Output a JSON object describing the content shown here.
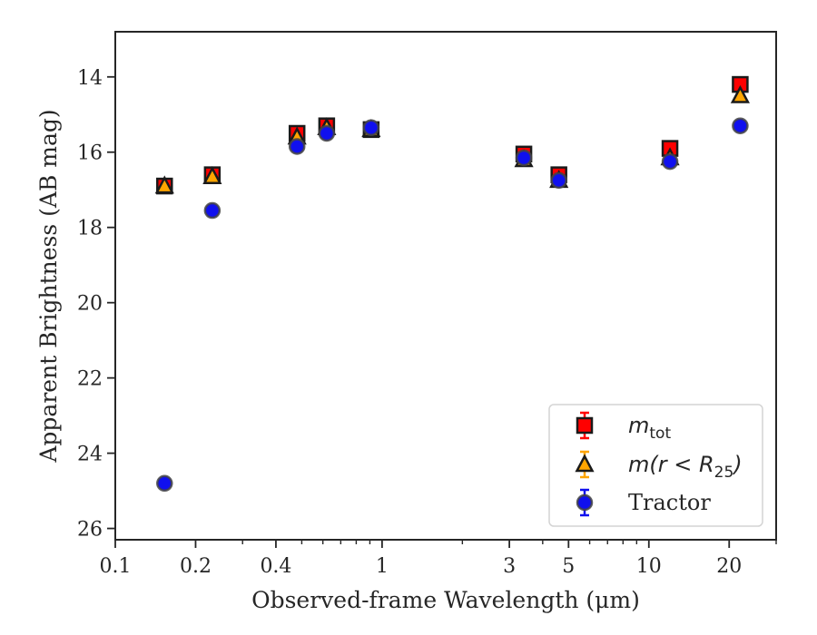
{
  "chart_data": {
    "type": "scatter",
    "xlabel": "Observed-frame Wavelength (μm)",
    "ylabel": "Apparent Brightness (AB mag)",
    "x_scale": "log",
    "xlim": [
      0.1,
      30
    ],
    "ylim": [
      26.3,
      12.8
    ],
    "y_inverted": true,
    "x_ticks": [
      0.1,
      0.2,
      0.4,
      1,
      3,
      5,
      10,
      20
    ],
    "x_tick_labels": [
      "0.1",
      "0.2",
      "0.4",
      "1",
      "3",
      "5",
      "10",
      "20"
    ],
    "y_ticks": [
      14,
      16,
      18,
      20,
      22,
      24,
      26
    ],
    "y_tick_labels": [
      "14",
      "16",
      "18",
      "20",
      "22",
      "24",
      "26"
    ],
    "grid": false,
    "legend": {
      "position": "lower-right",
      "entries": [
        {
          "key": "mtot",
          "base": "m",
          "sub": "tot",
          "text": "",
          "marker": "square",
          "color": "#ff0000"
        },
        {
          "key": "mr25",
          "base": "m(r < R",
          "sub": "25",
          "text": ")",
          "marker": "triangle",
          "color": "#ffa500"
        },
        {
          "key": "tractor",
          "base": "",
          "sub": "",
          "text": "Tractor",
          "marker": "circle",
          "color": "#1010ee"
        }
      ]
    },
    "series": [
      {
        "key": "mtot",
        "marker": "square",
        "color": "#ff0000",
        "points": [
          {
            "x": 0.153,
            "y": 16.9
          },
          {
            "x": 0.231,
            "y": 16.6
          },
          {
            "x": 0.48,
            "y": 15.5
          },
          {
            "x": 0.62,
            "y": 15.3
          },
          {
            "x": 0.91,
            "y": 15.4
          },
          {
            "x": 3.4,
            "y": 16.05
          },
          {
            "x": 4.6,
            "y": 16.6
          },
          {
            "x": 12,
            "y": 15.9
          },
          {
            "x": 22,
            "y": 14.2
          }
        ]
      },
      {
        "key": "mr25",
        "marker": "triangle",
        "color": "#ffa500",
        "points": [
          {
            "x": 0.153,
            "y": 16.9
          },
          {
            "x": 0.231,
            "y": 16.65
          },
          {
            "x": 0.48,
            "y": 15.6
          },
          {
            "x": 0.62,
            "y": 15.35
          },
          {
            "x": 0.91,
            "y": 15.4
          },
          {
            "x": 3.4,
            "y": 16.2
          },
          {
            "x": 4.6,
            "y": 16.75
          },
          {
            "x": 12,
            "y": 16.15
          },
          {
            "x": 22,
            "y": 14.5
          }
        ]
      },
      {
        "key": "tractor",
        "marker": "circle",
        "color": "#1010ee",
        "points": [
          {
            "x": 0.153,
            "y": 24.8
          },
          {
            "x": 0.231,
            "y": 17.55
          },
          {
            "x": 0.48,
            "y": 15.85
          },
          {
            "x": 0.62,
            "y": 15.5
          },
          {
            "x": 0.91,
            "y": 15.35
          },
          {
            "x": 3.4,
            "y": 16.15
          },
          {
            "x": 4.6,
            "y": 16.75
          },
          {
            "x": 12,
            "y": 16.25
          },
          {
            "x": 22,
            "y": 15.3
          }
        ]
      }
    ]
  }
}
